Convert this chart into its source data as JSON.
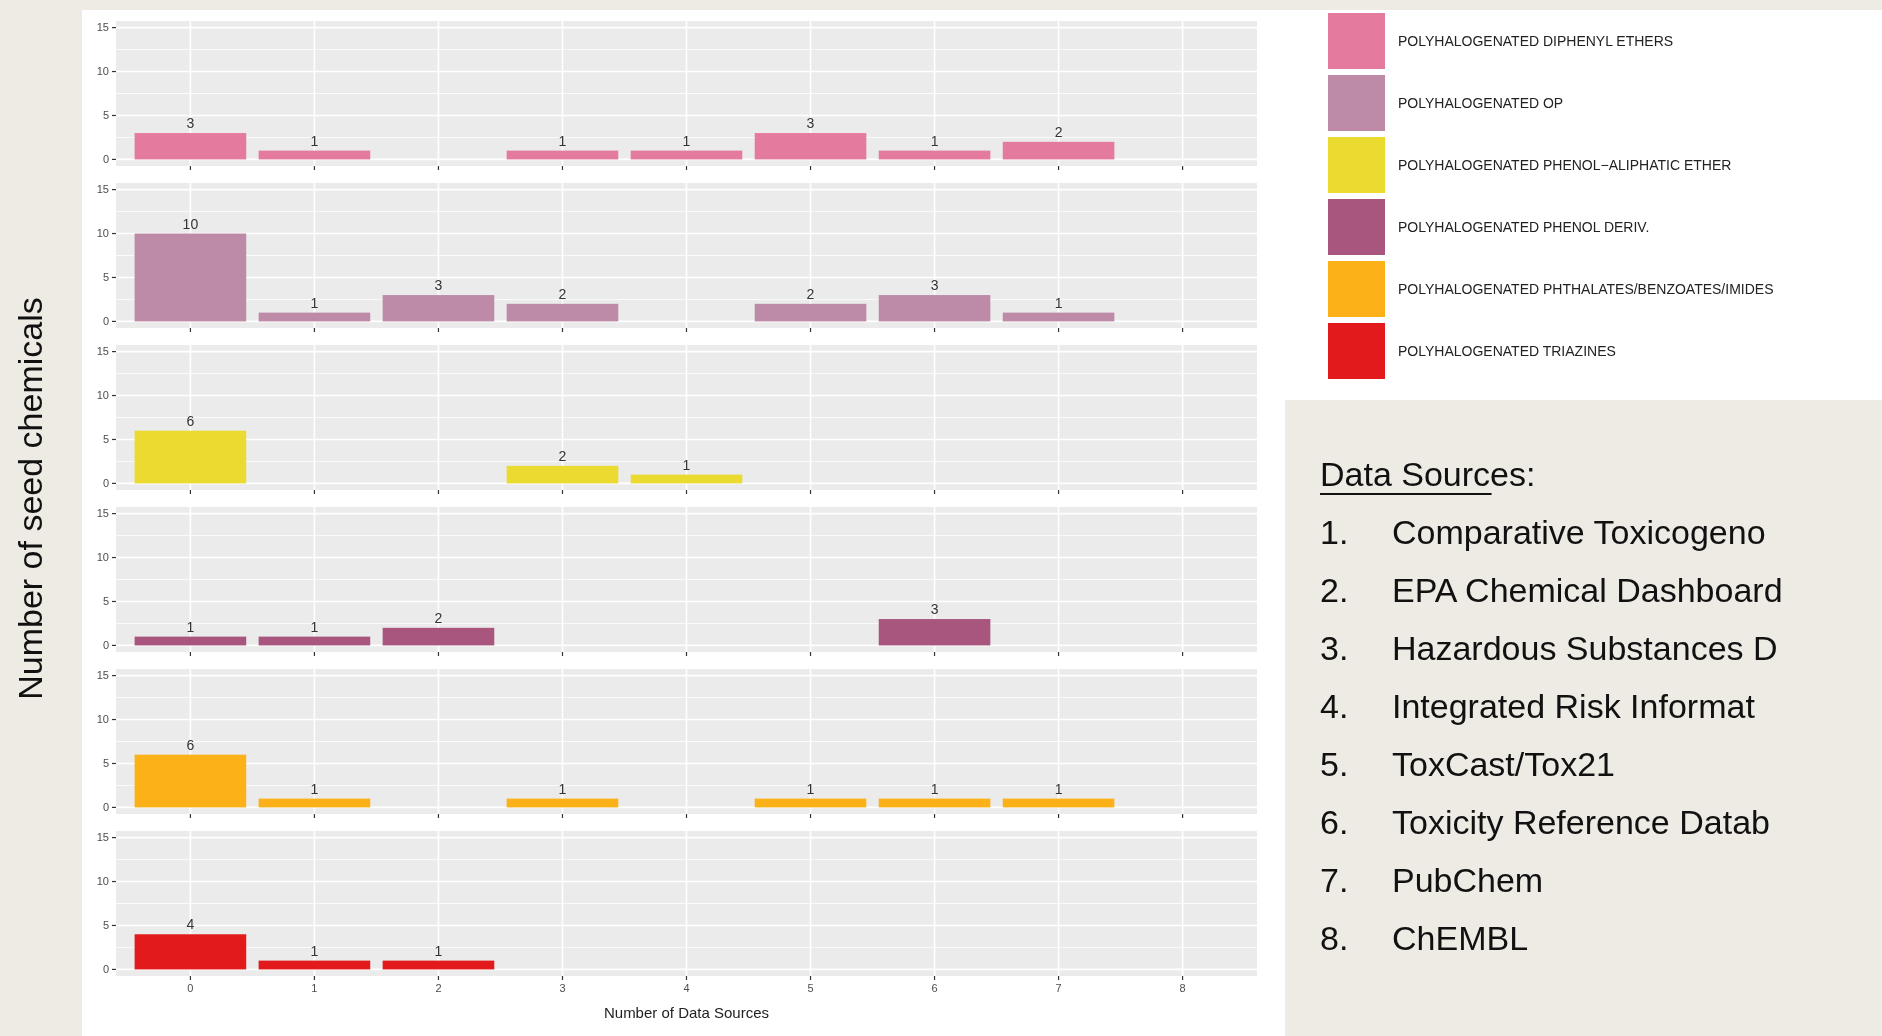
{
  "chart_data": [
    {
      "type": "bar",
      "ylabel": "Number of seed chemicals",
      "categories": [
        "0",
        "1",
        "2",
        "3",
        "4",
        "5",
        "6",
        "7",
        "8"
      ],
      "series": [
        {
          "name": "POLYHALOGENATED DIPHENYL ETHERS",
          "color": "#e57a9f",
          "values": [
            3,
            1,
            null,
            1,
            1,
            3,
            1,
            2,
            null
          ]
        }
      ],
      "ylim": [
        -0.75,
        15.75
      ],
      "yticks": [
        0,
        5,
        10,
        15
      ],
      "grid": true,
      "legend": "right",
      "data_labels": true,
      "tick_labels": "y",
      "annotations": [
        "Data Sources:",
        "1.\tComparative Toxicogeno",
        "2.\tEPA Chemical Dashboard",
        "3.\tHazardous Substances D",
        "4.\tIntegrated Risk Informat",
        "5.\tToxCast/Tox21",
        "6.\tToxicity Reference Datab",
        "7.\tPubChem",
        "8.\tChEMBL"
      ]
    },
    {
      "type": "bar",
      "categories": [
        "0",
        "1",
        "2",
        "3",
        "4",
        "5",
        "6",
        "7",
        "8"
      ],
      "series": [
        {
          "name": "POLYHALOGENATED OP",
          "color": "#bd8ba7",
          "values": [
            10,
            1,
            3,
            2,
            null,
            2,
            3,
            1,
            null
          ]
        }
      ],
      "ylim": [
        -0.75,
        15.75
      ],
      "yticks": [
        0,
        5,
        10,
        15
      ],
      "grid": true,
      "legend": "right",
      "data_labels": true,
      "tick_labels": "y"
    },
    {
      "type": "bar",
      "categories": [
        "0",
        "1",
        "2",
        "3",
        "4",
        "5",
        "6",
        "7",
        "8"
      ],
      "series": [
        {
          "name": "POLYHALOGENATED PHENOL−ALIPHATIC ETHER",
          "color": "#ebdb30",
          "values": [
            6,
            null,
            null,
            2,
            1,
            null,
            null,
            null,
            null
          ]
        }
      ],
      "ylim": [
        -0.75,
        15.75
      ],
      "yticks": [
        0,
        5,
        10,
        15
      ],
      "grid": true,
      "legend": "right",
      "data_labels": true,
      "tick_labels": "y"
    },
    {
      "type": "bar",
      "categories": [
        "0",
        "1",
        "2",
        "3",
        "4",
        "5",
        "6",
        "7",
        "8"
      ],
      "series": [
        {
          "name": "POLYHALOGENATED PHENOL DERIV.",
          "color": "#a8567e",
          "values": [
            1,
            1,
            2,
            null,
            null,
            null,
            3,
            null,
            null
          ]
        }
      ],
      "ylim": [
        -0.75,
        15.75
      ],
      "yticks": [
        0,
        5,
        10,
        15
      ],
      "grid": true,
      "legend": "right",
      "data_labels": true,
      "tick_labels": "y"
    },
    {
      "type": "bar",
      "categories": [
        "0",
        "1",
        "2",
        "3",
        "4",
        "5",
        "6",
        "7",
        "8"
      ],
      "series": [
        {
          "name": "POLYHALOGENATED PHTHALATES/BENZOATES/IMIDES",
          "color": "#fbb117",
          "values": [
            6,
            1,
            null,
            1,
            null,
            1,
            1,
            1,
            null
          ]
        }
      ],
      "ylim": [
        -0.75,
        15.75
      ],
      "yticks": [
        0,
        5,
        10,
        15
      ],
      "grid": true,
      "legend": "right",
      "data_labels": true,
      "tick_labels": "y"
    },
    {
      "type": "bar",
      "xlabel": "Number of Data Sources",
      "categories": [
        "0",
        "1",
        "2",
        "3",
        "4",
        "5",
        "6",
        "7",
        "8"
      ],
      "series": [
        {
          "name": "POLYHALOGENATED TRIAZINES",
          "color": "#e31a1c",
          "values": [
            4,
            1,
            1,
            null,
            null,
            null,
            null,
            null,
            null
          ]
        }
      ],
      "ylim": [
        -0.75,
        15.75
      ],
      "yticks": [
        0,
        5,
        10,
        15
      ],
      "grid": true,
      "legend": "right",
      "data_labels": true
    }
  ]
}
